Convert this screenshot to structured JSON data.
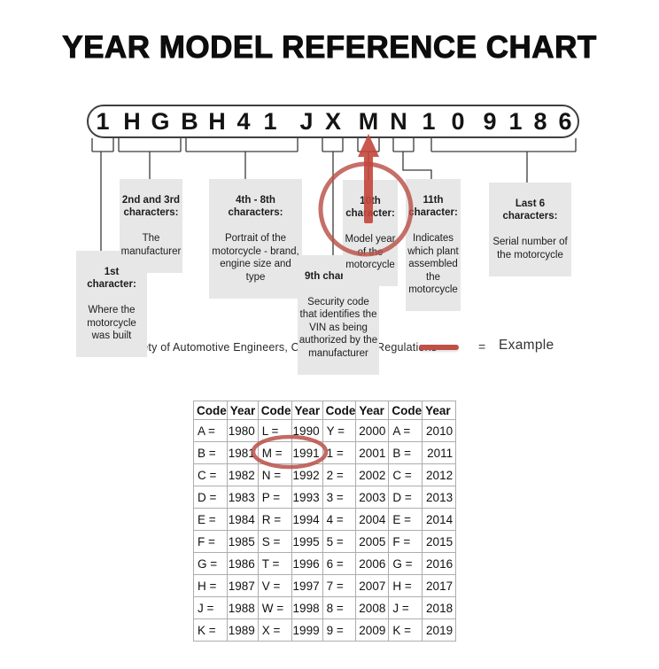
{
  "title": "YEAR MODEL REFERENCE CHART",
  "vin": {
    "chars": [
      "1",
      "H",
      "G",
      "B",
      "H",
      "4",
      "1",
      "J",
      "X",
      "M",
      "N",
      "1",
      "0",
      "9",
      "1",
      "8",
      "6"
    ]
  },
  "callouts": [
    {
      "id": "first",
      "head": "1st\ncharacter:",
      "body": "Where the\nmotorcycle\nwas built"
    },
    {
      "id": "second-third",
      "head": "2nd and 3rd\ncharacters:",
      "body": "The\nmanufacturer"
    },
    {
      "id": "fourth-eighth",
      "head": "4th - 8th\ncharacters:",
      "body": "Portrait of the\nmotorcycle - brand,\nengine size and type"
    },
    {
      "id": "ninth",
      "head": "9th character:",
      "body": "Security code\nthat identifies the\nVIN as being\nauthorized by the\nmanufacturer"
    },
    {
      "id": "tenth",
      "head": "10th\ncharacter:",
      "body": "Model year\nof the\nmotorcycle"
    },
    {
      "id": "eleventh",
      "head": "11th\ncharacter:",
      "body": "Indicates\nwhich plant\nassembled\nthe\nmotorcycle"
    },
    {
      "id": "last-six",
      "head": "Last 6\ncharacters:",
      "body": "Serial number of\nthe motorcycle"
    }
  ],
  "source_text": "Source:  Society of Automotive Engineers, Code of Federal Regulations",
  "legend": {
    "equals": "=",
    "label": "Example"
  },
  "colors": {
    "annotation_red": "#c0463c",
    "callout_gray": "#e7e7e7"
  },
  "table": {
    "headers": [
      "Code",
      "Year",
      "Code",
      "Year",
      "Code",
      "Year",
      "Code",
      "Year"
    ],
    "rows": [
      [
        "A =",
        "1980",
        "L =",
        "1990",
        "Y =",
        "2000",
        "A =",
        "2010"
      ],
      [
        "B =",
        "1981",
        "M =",
        "1991",
        "1 =",
        "2001",
        "B =",
        "2011"
      ],
      [
        "C =",
        "1982",
        "N =",
        "1992",
        "2 =",
        "2002",
        "C =",
        "2012"
      ],
      [
        "D =",
        "1983",
        "P =",
        "1993",
        "3 =",
        "2003",
        "D =",
        "2013"
      ],
      [
        "E =",
        "1984",
        "R =",
        "1994",
        "4 =",
        "2004",
        "E =",
        "2014"
      ],
      [
        "F =",
        "1985",
        "S =",
        "1995",
        "5 =",
        "2005",
        "F =",
        "2015"
      ],
      [
        "G =",
        "1986",
        "T =",
        "1996",
        "6 =",
        "2006",
        "G =",
        "2016"
      ],
      [
        "H =",
        "1987",
        "V =",
        "1997",
        "7 =",
        "2007",
        "H =",
        "2017"
      ],
      [
        "J =",
        "1988",
        "W =",
        "1998",
        "8 =",
        "2008",
        "J =",
        "2018"
      ],
      [
        "K =",
        "1989",
        "X =",
        "1999",
        "9 =",
        "2009",
        "K =",
        "2019"
      ]
    ],
    "circled_cell": "M = 1991"
  }
}
